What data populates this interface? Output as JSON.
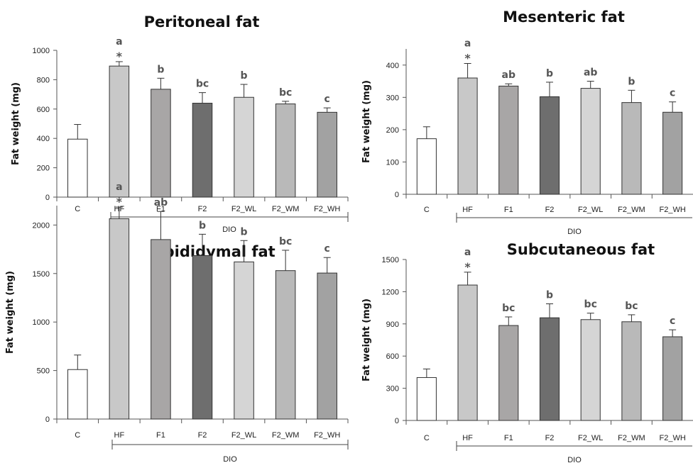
{
  "chart_data": [
    {
      "type": "bar",
      "title": "Peritoneal fat",
      "ylabel": "Fat weight (mg)",
      "ylim": [
        0,
        1000
      ],
      "yticks": [
        0,
        200,
        400,
        600,
        800,
        1000
      ],
      "categories": [
        "C",
        "HF",
        "F1",
        "F2",
        "F2_WL",
        "F2_WM",
        "F2_WH"
      ],
      "values": [
        395,
        893,
        735,
        640,
        680,
        635,
        578
      ],
      "errors": [
        100,
        30,
        75,
        72,
        88,
        18,
        30
      ],
      "letters": [
        "",
        "a",
        "b",
        "bc",
        "b",
        "bc",
        "c"
      ],
      "stars": [
        "",
        "*",
        "",
        "",
        "",
        "",
        ""
      ],
      "group_label": "DIO",
      "bar_colors": [
        "#ffffff",
        "#c8c8c8",
        "#a8a6a6",
        "#6e6e6e",
        "#d5d5d5",
        "#b9b9b9",
        "#a2a2a2"
      ]
    },
    {
      "type": "bar",
      "title": "Mesenteric fat",
      "ylabel": "Fat weight (mg)",
      "ylim": [
        0,
        450
      ],
      "yticks": [
        0,
        100,
        200,
        300,
        400
      ],
      "categories": [
        "C",
        "HF",
        "F1",
        "F2",
        "F2_WL",
        "F2_WM",
        "F2_WH"
      ],
      "values": [
        172,
        360,
        335,
        302,
        328,
        284,
        254
      ],
      "errors": [
        37,
        45,
        7,
        45,
        22,
        38,
        32
      ],
      "letters": [
        "",
        "a",
        "ab",
        "b",
        "ab",
        "b",
        "c"
      ],
      "stars": [
        "",
        "*",
        "",
        "",
        "",
        "",
        ""
      ],
      "group_label": "DIO",
      "bar_colors": [
        "#ffffff",
        "#c8c8c8",
        "#a8a6a6",
        "#6e6e6e",
        "#d5d5d5",
        "#b9b9b9",
        "#a2a2a2"
      ]
    },
    {
      "type": "bar",
      "title": "Epididymal fat",
      "ylabel": "Fat weight (mg)",
      "ylim": [
        0,
        2200
      ],
      "yticks": [
        0,
        500,
        1000,
        1500,
        2000
      ],
      "categories": [
        "C",
        "HF",
        "F1",
        "F2",
        "F2_WL",
        "F2_WM",
        "F2_WH"
      ],
      "values": [
        510,
        2065,
        1850,
        1685,
        1620,
        1530,
        1505
      ],
      "errors": [
        150,
        120,
        290,
        220,
        220,
        210,
        160
      ],
      "letters": [
        "",
        "a",
        "ab",
        "b",
        "b",
        "bc",
        "c"
      ],
      "stars": [
        "",
        "*",
        "",
        "",
        "",
        "",
        ""
      ],
      "group_label": "DIO",
      "bar_colors": [
        "#ffffff",
        "#c8c8c8",
        "#a8a6a6",
        "#6e6e6e",
        "#d5d5d5",
        "#b9b9b9",
        "#a2a2a2"
      ]
    },
    {
      "type": "bar",
      "title": "Subcutaneous fat",
      "ylabel": "Fat weight (mg)",
      "ylim": [
        0,
        1500
      ],
      "yticks": [
        0,
        300,
        600,
        900,
        1200,
        1500
      ],
      "categories": [
        "C",
        "HF",
        "F1",
        "F2",
        "F2_WL",
        "F2_WM",
        "F2_WH"
      ],
      "values": [
        400,
        1262,
        885,
        957,
        940,
        920,
        780
      ],
      "errors": [
        80,
        120,
        80,
        130,
        60,
        65,
        65
      ],
      "letters": [
        "",
        "a",
        "bc",
        "b",
        "bc",
        "bc",
        "c"
      ],
      "stars": [
        "",
        "*",
        "",
        "",
        "",
        "",
        ""
      ],
      "group_label": "DIO",
      "bar_colors": [
        "#ffffff",
        "#c8c8c8",
        "#a8a6a6",
        "#6e6e6e",
        "#d5d5d5",
        "#b9b9b9",
        "#a2a2a2"
      ]
    }
  ]
}
